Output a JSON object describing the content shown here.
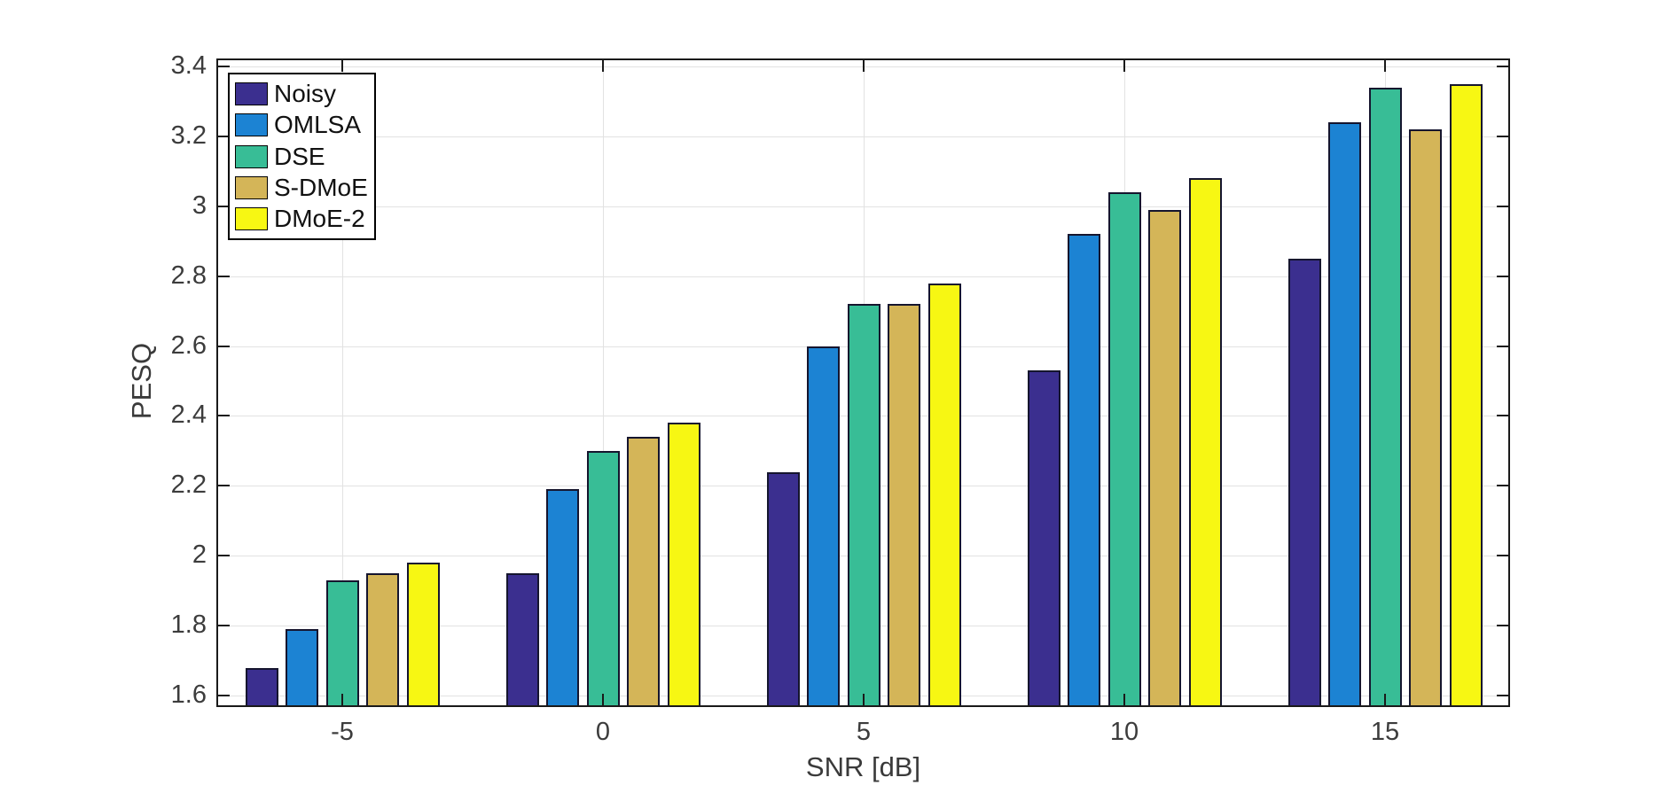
{
  "figure": {
    "background": "#ffffff",
    "axis_color": "#1a1a1a",
    "grid_color": "#e2e2e2",
    "bar_edge_color": "#15152e",
    "tick_label_color": "#3c3c3c",
    "axis_title_color": "#3a3a3a"
  },
  "chart_data": {
    "type": "bar",
    "title": "",
    "xlabel": "SNR [dB]",
    "ylabel": "PESQ",
    "categories": [
      "-5",
      "0",
      "5",
      "10",
      "15"
    ],
    "series": [
      {
        "name": "Noisy",
        "color": "#3b2f8f",
        "values": [
          1.68,
          1.95,
          2.24,
          2.53,
          2.85
        ]
      },
      {
        "name": "OMLSA",
        "color": "#1c83d3",
        "values": [
          1.79,
          2.19,
          2.6,
          2.92,
          3.24
        ]
      },
      {
        "name": "DSE",
        "color": "#38bd96",
        "values": [
          1.93,
          2.3,
          2.72,
          3.04,
          3.34
        ]
      },
      {
        "name": "S-DMoE",
        "color": "#d4b558",
        "values": [
          1.95,
          2.34,
          2.72,
          2.99,
          3.22
        ]
      },
      {
        "name": "DMoE-2",
        "color": "#f7f713",
        "values": [
          1.98,
          2.38,
          2.78,
          3.08,
          3.35
        ]
      }
    ],
    "ylim": [
      1.57,
      3.42
    ],
    "ytick_values": [
      1.6,
      1.8,
      2.0,
      2.2,
      2.4,
      2.6,
      2.8,
      3.0,
      3.2,
      3.4
    ],
    "ytick_labels": [
      "1.6",
      "1.8",
      "2",
      "2.2",
      "2.4",
      "2.6",
      "2.8",
      "3",
      "3.2",
      "3.4"
    ],
    "grid": "on",
    "legend_position": "top-left"
  }
}
